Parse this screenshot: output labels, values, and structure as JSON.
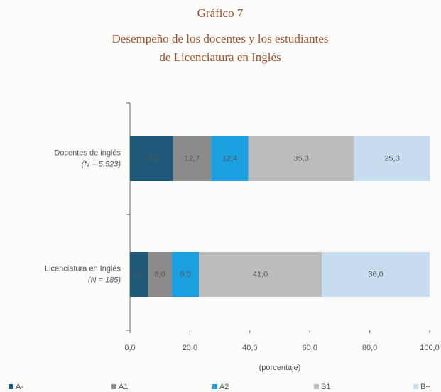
{
  "chart_data": {
    "type": "stacked_bar_horizontal",
    "title": "Gráfico 7",
    "subtitle": [
      "Desempeño de los docentes y los estudiantes",
      "de Licenciatura en Inglés"
    ],
    "categories": [
      "Docentes de inglés",
      "Licenciatura en Inglés"
    ],
    "category_notes": [
      "(N = 5.523)",
      "(N = 185)"
    ],
    "series": [
      {
        "name": "A-",
        "color": "#1f5878",
        "values": [
          14.4,
          6.0
        ],
        "value_labels": [
          "14,4",
          "6,0"
        ]
      },
      {
        "name": "A1",
        "color": "#8c8b8b",
        "values": [
          12.7,
          8.0
        ],
        "value_labels": [
          "12,7",
          "8,0"
        ]
      },
      {
        "name": "A2",
        "color": "#1a9fe0",
        "values": [
          12.4,
          9.0
        ],
        "value_labels": [
          "12,4",
          "9,0"
        ]
      },
      {
        "name": "B1",
        "color": "#bcbcbc",
        "values": [
          35.3,
          41.0
        ],
        "value_labels": [
          "35,3",
          "41,0"
        ]
      },
      {
        "name": "B+",
        "color": "#c7dcee",
        "values": [
          25.3,
          36.0
        ],
        "value_labels": [
          "25,3",
          "36,0"
        ]
      }
    ],
    "xlabel": "(porcentaje)",
    "xlim": [
      0,
      100
    ],
    "xticks": [
      {
        "value": 0,
        "label": "0,0"
      },
      {
        "value": 20,
        "label": "20,0"
      },
      {
        "value": 40,
        "label": "40,0"
      },
      {
        "value": 60,
        "label": "60,0"
      },
      {
        "value": 80,
        "label": "80,0"
      },
      {
        "value": 100,
        "label": "100,0"
      }
    ],
    "legend": "bottom"
  }
}
